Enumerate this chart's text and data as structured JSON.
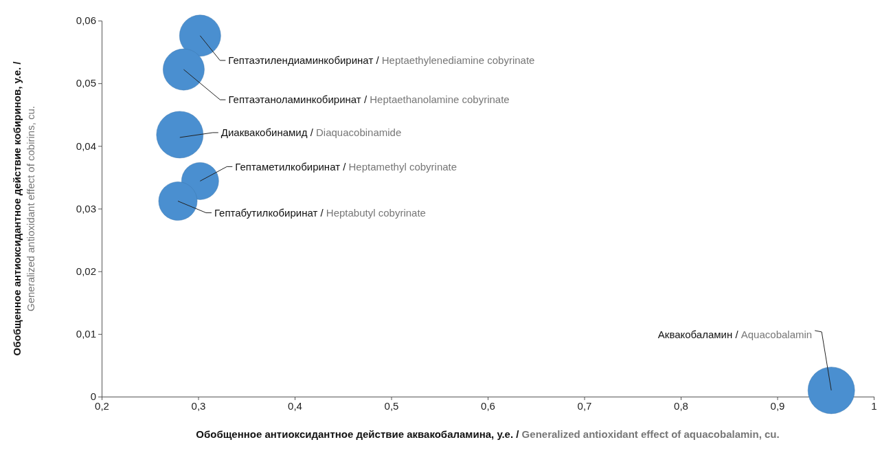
{
  "chart_data": {
    "type": "bubble",
    "xlabel": "Обобщенное антиоксидантное действие аквакобаламина, у.е. / Generalized antioxidant effect of aquacobalamin, cu.",
    "ylabel": "Обобщенное антиоксидантное действие кобиринов, у.е. / Generalized antioxidant effect of cobirins, cu.",
    "series": [
      {
        "color": "#4a8fd0",
        "x": [
          0.302,
          0.285,
          0.281,
          0.302,
          0.279,
          0.956
        ],
        "values": [
          0.0576,
          0.0522,
          0.0418,
          0.0344,
          0.0312,
          0.001
        ],
        "sizes": [
          0.78,
          0.78,
          1,
          0.63,
          0.68,
          1
        ]
      }
    ],
    "annotations": [
      {
        "text": "Гептаэтилендиаминкобиринат / Heptaethylenediamine cobyrinate",
        "x": 0.302,
        "y": 0.0576
      },
      {
        "text": "Гептаэтаноламинкобиринат / Heptaethanolamine cobyrinate",
        "x": 0.285,
        "y": 0.0522
      },
      {
        "text": "Диаквакобинамид / Diaquacobinamide",
        "x": 0.281,
        "y": 0.0418
      },
      {
        "text": "Гептаметилкобиринат / Heptamethyl cobyrinate",
        "x": 0.302,
        "y": 0.0344
      },
      {
        "text": "Гептабутилкобиринат / Heptabutyl cobyrinate",
        "x": 0.279,
        "y": 0.0312
      },
      {
        "text": "Аквакобаламин / Aquacobalamin",
        "x": 0.956,
        "y": 0.001
      }
    ],
    "xlim": [
      0.2,
      1
    ],
    "xticks": [
      {
        "value": 0.2,
        "label": "0,2"
      },
      {
        "value": 0.3,
        "label": "0,3"
      },
      {
        "value": 0.4,
        "label": "0,4"
      },
      {
        "value": 0.5,
        "label": "0,5"
      },
      {
        "value": 0.6,
        "label": "0,6"
      },
      {
        "value": 0.7,
        "label": "0,7"
      },
      {
        "value": 0.8,
        "label": "0,8"
      },
      {
        "value": 0.9,
        "label": "0,9"
      },
      1
    ],
    "ylim": [
      0,
      0.06
    ],
    "yticks": [
      0,
      {
        "value": 0.01,
        "label": "0,01"
      },
      {
        "value": 0.02,
        "label": "0,02"
      },
      {
        "value": 0.03,
        "label": "0,03"
      },
      {
        "value": 0.04,
        "label": "0,04"
      },
      {
        "value": 0.05,
        "label": "0,05"
      },
      {
        "value": 0.06,
        "label": "0,06"
      }
    ],
    "grid": false,
    "marker": "circle"
  }
}
